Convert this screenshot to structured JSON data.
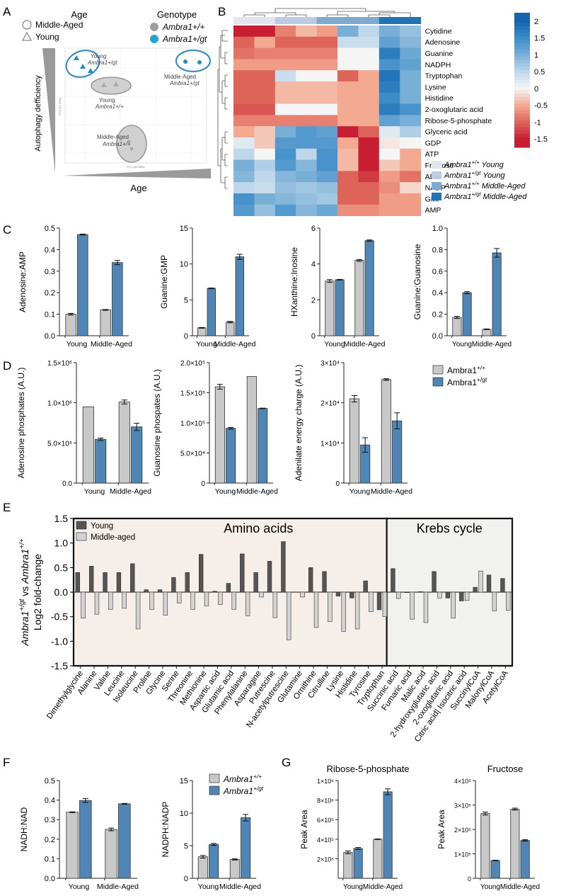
{
  "colors": {
    "wt": "#c8c8c8",
    "gt": "#4f86b5",
    "young_dark": "#555555",
    "mid_light": "#d4d4d4",
    "ellipse_blue": "#3b8fbf",
    "ellipse_grey": "#c8c8c8"
  },
  "panels": {
    "A": "A",
    "B": "B",
    "C": "C",
    "D": "D",
    "E": "E",
    "F": "F",
    "G": "G"
  },
  "pca": {
    "legend_age_title": "Age",
    "legend_age_items": [
      "Middle-Aged",
      "Young"
    ],
    "legend_genotype_title": "Genotype",
    "legend_genotype_items": [
      "Ambra1+/+",
      "Ambra1+/gt"
    ],
    "y_arrow_label": "Autophagy defficiency",
    "x_arrow_label": "Age",
    "axis_x_title": "PC1 (52.99%)",
    "axis_y_title": "PC2 (17.42%)",
    "groups": [
      {
        "name": "Young",
        "genotype": "Ambra1+/gt"
      },
      {
        "name": "Young",
        "genotype": "Ambra1+/+"
      },
      {
        "name": "Middle-Aged",
        "genotype": "Ambra1+/gt"
      },
      {
        "name": "Middle-Aged",
        "genotype": "Ambra1+/+"
      }
    ]
  },
  "heatmap": {
    "rows": [
      "Cytidine",
      "Adenosine",
      "Guanine",
      "NADPH",
      "Tryptophan",
      "Lysine",
      "Histidine",
      "2-oxoglutaric acid",
      "Ribose-5-phosphate",
      "Glyceric acid",
      "GDP",
      "ATP",
      "Fructose",
      "ADP",
      "NADP",
      "GMP",
      "AMP"
    ],
    "values": [
      [
        -1.5,
        -1.5,
        -0.8,
        -0.4,
        -0.6,
        1.0,
        0.5,
        1.0,
        0.8
      ],
      [
        -1.0,
        -0.5,
        -1.0,
        -1.0,
        -1.0,
        0.4,
        0.4,
        1.2,
        0.9
      ],
      [
        -0.9,
        -0.8,
        -0.8,
        -0.8,
        -0.8,
        0.0,
        0.0,
        1.7,
        1.1
      ],
      [
        -0.6,
        -0.6,
        -0.6,
        -0.6,
        -0.6,
        0.0,
        0.0,
        1.4,
        1.2
      ],
      [
        -1.0,
        -1.0,
        0.4,
        0.0,
        0.0,
        -1.0,
        -0.5,
        1.8,
        1.0
      ],
      [
        -1.0,
        -1.0,
        -0.4,
        -0.4,
        -0.4,
        -0.5,
        -0.5,
        1.7,
        1.0
      ],
      [
        -1.0,
        -1.0,
        -0.4,
        -0.4,
        -0.4,
        -0.5,
        -0.5,
        1.5,
        1.0
      ],
      [
        -1.1,
        -1.1,
        0.0,
        0.0,
        0.0,
        -0.5,
        -0.5,
        1.7,
        1.4
      ],
      [
        -0.8,
        -0.8,
        -0.8,
        -0.8,
        -0.8,
        -0.5,
        -0.5,
        1.2,
        1.0
      ],
      [
        -0.5,
        -0.3,
        1.0,
        1.3,
        1.2,
        -1.5,
        -1.0,
        0.2,
        0.6
      ],
      [
        0.2,
        -0.3,
        1.3,
        1.3,
        1.3,
        -0.5,
        -1.5,
        -0.1,
        0.0
      ],
      [
        0.5,
        0.0,
        1.4,
        0.5,
        1.4,
        -0.4,
        -1.5,
        0.0,
        -0.5
      ],
      [
        1.0,
        0.6,
        1.3,
        0.9,
        1.4,
        -0.4,
        -1.5,
        -0.3,
        -0.5
      ],
      [
        0.9,
        0.5,
        0.9,
        1.0,
        1.2,
        -1.0,
        -1.3,
        -0.6,
        -0.9
      ],
      [
        0.5,
        0.4,
        0.8,
        0.7,
        0.8,
        -1.0,
        -1.0,
        -0.7,
        -0.2
      ],
      [
        1.4,
        1.0,
        0.9,
        0.8,
        0.7,
        -1.0,
        -1.0,
        -0.6,
        -0.6
      ],
      [
        1.3,
        0.8,
        1.3,
        0.9,
        1.1,
        -0.7,
        -0.7,
        -0.6,
        -0.6
      ]
    ],
    "scale_ticks": [
      "2",
      "1.5",
      "1",
      "0.5",
      "0",
      "-0.5",
      "-1",
      "-1.5"
    ],
    "col_groups": [
      {
        "label": "Ambra1+/+ Young",
        "color": "#e4e4ee"
      },
      {
        "label": "Ambra1+/gt Young",
        "color": "#bccbe2"
      },
      {
        "label": "Ambra1+/+ Middle-Aged",
        "color": "#7fa9cf"
      },
      {
        "label": "Ambra1+/gt Middle-Aged",
        "color": "#1f74b3"
      }
    ]
  },
  "chart_data": [
    {
      "id": "C1",
      "type": "bar",
      "ylabel": "Adenosine:AMP",
      "categories": [
        "Young",
        "Middle-Aged"
      ],
      "ylim": [
        0,
        0.5
      ],
      "yticks": [
        0,
        0.1,
        0.2,
        0.3,
        0.4,
        0.5
      ],
      "ytick_labels": [
        "0.0",
        "0.1",
        "0.2",
        "0.3",
        "0.4",
        "0.5"
      ],
      "series": [
        {
          "name": "Ambra1+/+",
          "values": [
            0.1,
            0.12
          ],
          "errors": [
            0.004,
            0.002
          ]
        },
        {
          "name": "Ambra1+/gt",
          "values": [
            0.47,
            0.34
          ],
          "errors": [
            0.002,
            0.01
          ]
        }
      ]
    },
    {
      "id": "C2",
      "type": "bar",
      "ylabel": "Guanine:GMP",
      "categories": [
        "Young",
        "Middle-Aged"
      ],
      "ylim": [
        0,
        15
      ],
      "yticks": [
        0,
        5,
        10,
        15
      ],
      "ytick_labels": [
        "0",
        "5",
        "10",
        "15"
      ],
      "series": [
        {
          "name": "Ambra1+/+",
          "values": [
            1.1,
            1.9
          ],
          "errors": [
            0.05,
            0.1
          ]
        },
        {
          "name": "Ambra1+/gt",
          "values": [
            6.6,
            11.0
          ],
          "errors": [
            0.05,
            0.35
          ]
        }
      ]
    },
    {
      "id": "C3",
      "type": "bar",
      "ylabel": "HXanthine:Inosine",
      "categories": [
        "Young",
        "Middle-Aged"
      ],
      "ylim": [
        0,
        6
      ],
      "yticks": [
        0,
        2,
        4,
        6
      ],
      "ytick_labels": [
        "0",
        "2",
        "4",
        "6"
      ],
      "series": [
        {
          "name": "Ambra1+/+",
          "values": [
            3.05,
            4.2
          ],
          "errors": [
            0.08,
            0.05
          ]
        },
        {
          "name": "Ambra1+/gt",
          "values": [
            3.12,
            5.3
          ],
          "errors": [
            0.02,
            0.04
          ]
        }
      ]
    },
    {
      "id": "C4",
      "type": "bar",
      "ylabel": "Guanine:Guanosine",
      "categories": [
        "Young",
        "Middle-Aged"
      ],
      "ylim": [
        0,
        1.0
      ],
      "yticks": [
        0,
        0.2,
        0.4,
        0.6,
        0.8,
        1.0
      ],
      "ytick_labels": [
        "0.0",
        "0.2",
        "0.4",
        "0.6",
        "0.8",
        "1.0"
      ],
      "series": [
        {
          "name": "Ambra1+/+",
          "values": [
            0.17,
            0.06
          ],
          "errors": [
            0.01,
            0.003
          ]
        },
        {
          "name": "Ambra1+/gt",
          "values": [
            0.4,
            0.77
          ],
          "errors": [
            0.01,
            0.04
          ]
        }
      ]
    },
    {
      "id": "D1",
      "type": "bar",
      "ylabel": "Adenosine phosphates (A.U.)",
      "categories": [
        "Young",
        "Middle-Aged"
      ],
      "ylim": [
        0,
        1500000
      ],
      "yticks": [
        0,
        500000,
        1000000,
        1500000
      ],
      "ytick_labels": [
        "0.0",
        "5.0×10⁵",
        "1.0×10⁶",
        "1.5×10⁶"
      ],
      "series": [
        {
          "name": "Ambra1+/+",
          "values": [
            950000,
            1010000
          ],
          "errors": [
            0,
            25000
          ]
        },
        {
          "name": "Ambra1+/gt",
          "values": [
            545000,
            700000
          ],
          "errors": [
            15000,
            45000
          ]
        }
      ]
    },
    {
      "id": "D2",
      "type": "bar",
      "ylabel": "Guanosine phospates (A.U.)",
      "categories": [
        "Young",
        "Middle-Aged"
      ],
      "ylim": [
        0,
        200000
      ],
      "yticks": [
        0,
        50000,
        100000,
        150000,
        200000
      ],
      "ytick_labels": [
        "0",
        "5.0×10⁴",
        "1.0×10⁵",
        "1.5×10⁵",
        "2.0×10⁵"
      ],
      "series": [
        {
          "name": "Ambra1+/+",
          "values": [
            160000,
            177000
          ],
          "errors": [
            4000,
            0
          ]
        },
        {
          "name": "Ambra1+/gt",
          "values": [
            91000,
            124000
          ],
          "errors": [
            1500,
            500
          ]
        }
      ]
    },
    {
      "id": "D3",
      "type": "bar",
      "ylabel": "Adenilate energy charge (A.U.)",
      "categories": [
        "Young",
        "Middle-Aged"
      ],
      "ylim": [
        0,
        30000
      ],
      "yticks": [
        0,
        10000,
        20000,
        30000
      ],
      "ytick_labels": [
        "0",
        "1×10⁴",
        "2×10⁴",
        "3×10⁴"
      ],
      "series": [
        {
          "name": "Ambra1+/+",
          "values": [
            21000,
            25800
          ],
          "errors": [
            800,
            200
          ]
        },
        {
          "name": "Ambra1+/gt",
          "values": [
            9500,
            15500
          ],
          "errors": [
            1800,
            2000
          ]
        }
      ]
    },
    {
      "id": "E",
      "type": "bar",
      "ylabel": "Ambra1+/gt vs Ambra1+/+ Log2 fold-change",
      "ylim": [
        -1.5,
        1.5
      ],
      "yticks": [
        -1.5,
        -1.0,
        -0.5,
        0.0,
        0.5,
        1.0,
        1.5
      ],
      "ytick_labels": [
        "-1.5",
        "-1.0",
        "-0.5",
        "0.0",
        "0.5",
        "1.0",
        "1.5"
      ],
      "categories": [
        "Dimethylglycine",
        "Alanine",
        "Valine",
        "Leucine",
        "Isoleucine",
        "Proline",
        "Glycine",
        "Serine",
        "Threonine",
        "Methionine",
        "Aspartic acid",
        "Glutamic acid",
        "Phenylalanine",
        "Asparagine",
        "Putrescine",
        "N-acetylputrescine",
        "Glutamine",
        "Ornithine",
        "Citrulline",
        "Lysine",
        "Histidine",
        "Tyrosine",
        "Tryptophan",
        "Succinic acid",
        "Fumaric acid",
        "Malic acid",
        "2-hydroxyglutaric acid",
        "2-oxoglutaric acid",
        "Citric acid| Isocitric acid",
        "SuccinylCoA",
        "MalonylCoA",
        "AcetylCoA"
      ],
      "series": [
        {
          "name": "Young",
          "values": [
            0.4,
            0.53,
            0.4,
            0.4,
            0.58,
            0.05,
            0.05,
            0.3,
            0.4,
            0.77,
            0.02,
            0.18,
            0.78,
            0.4,
            0.63,
            1.03,
            0.0,
            0.5,
            0.42,
            -0.08,
            -0.12,
            0.23,
            -0.36,
            0.48,
            -0.01,
            0.01,
            0.42,
            -0.12,
            -0.18,
            0.1,
            0.35,
            0.28
          ]
        },
        {
          "name": "Middle-aged",
          "values": [
            -0.53,
            -0.45,
            -0.35,
            -0.33,
            -0.75,
            -0.35,
            -0.47,
            -0.22,
            -0.35,
            -0.28,
            -0.25,
            -0.35,
            -0.48,
            -0.1,
            -0.52,
            -0.97,
            -0.1,
            -0.72,
            -0.6,
            -0.8,
            -0.75,
            -0.4,
            -0.5,
            -0.13,
            -0.55,
            -0.62,
            -0.12,
            -0.53,
            -0.17,
            0.43,
            -0.38,
            -0.37
          ]
        }
      ],
      "sections": [
        {
          "label": "Amino acids",
          "start": 0,
          "end": 22
        },
        {
          "label": "Krebs cycle",
          "start": 23,
          "end": 31
        }
      ],
      "legend": [
        "Young",
        "Middle-aged"
      ]
    },
    {
      "id": "F1",
      "type": "bar",
      "ylabel": "NADH:NAD",
      "categories": [
        "Young",
        "Middle-Aged"
      ],
      "ylim": [
        0,
        0.5
      ],
      "yticks": [
        0,
        0.1,
        0.2,
        0.3,
        0.4,
        0.5
      ],
      "ytick_labels": [
        "0.0",
        "0.1",
        "0.2",
        "0.3",
        "0.4",
        "0.5"
      ],
      "series": [
        {
          "name": "Ambra1+/+",
          "values": [
            0.338,
            0.25
          ],
          "errors": [
            0.002,
            0.007
          ]
        },
        {
          "name": "Ambra1+/gt",
          "values": [
            0.398,
            0.381
          ],
          "errors": [
            0.01,
            0.002
          ]
        }
      ]
    },
    {
      "id": "F2",
      "type": "bar",
      "ylabel": "NADPH:NADP",
      "categories": [
        "Young",
        "Middle-Aged"
      ],
      "ylim": [
        0,
        15
      ],
      "yticks": [
        0,
        5,
        10,
        15
      ],
      "ytick_labels": [
        "0",
        "5",
        "10",
        "15"
      ],
      "series": [
        {
          "name": "Ambra1+/+",
          "values": [
            3.3,
            2.9
          ],
          "errors": [
            0.2,
            0.1
          ]
        },
        {
          "name": "Ambra1+/gt",
          "values": [
            5.2,
            9.3
          ],
          "errors": [
            0.15,
            0.5
          ]
        }
      ]
    },
    {
      "id": "G1",
      "type": "bar",
      "title": "Ribose-5-phosphate",
      "ylabel": "Peak Area",
      "categories": [
        "Young",
        "Middle-Aged"
      ],
      "ylim": [
        0,
        1000000
      ],
      "yticks": [
        200000,
        400000,
        600000,
        800000,
        1000000
      ],
      "ytick_labels": [
        "2×10⁵",
        "4×10⁵",
        "6×10⁵",
        "8×10⁵",
        "1×10⁶"
      ],
      "series": [
        {
          "name": "Ambra1+/+",
          "values": [
            265000,
            400000
          ],
          "errors": [
            15000,
            3000
          ]
        },
        {
          "name": "Ambra1+/gt",
          "values": [
            305000,
            885000
          ],
          "errors": [
            10000,
            30000
          ]
        }
      ]
    },
    {
      "id": "G2",
      "type": "bar",
      "title": "Fructose",
      "ylabel": "Peak Area",
      "categories": [
        "Young",
        "Middle-Aged"
      ],
      "ylim": [
        0,
        400000
      ],
      "yticks": [
        0,
        100000,
        200000,
        300000,
        400000
      ],
      "ytick_labels": [
        "0",
        "1×10⁵",
        "2×10⁵",
        "3×10⁵",
        "4×10⁵"
      ],
      "series": [
        {
          "name": "Ambra1+/+",
          "values": [
            265000,
            283000
          ],
          "errors": [
            6000,
            4000
          ]
        },
        {
          "name": "Ambra1+/gt",
          "values": [
            73000,
            155000
          ],
          "errors": [
            1000,
            3000
          ]
        }
      ]
    }
  ],
  "legend_D": [
    "Ambra1+/+",
    "Ambra1+/gt"
  ],
  "legend_F": [
    "Ambra1+/+",
    "Ambra1+/gt"
  ]
}
